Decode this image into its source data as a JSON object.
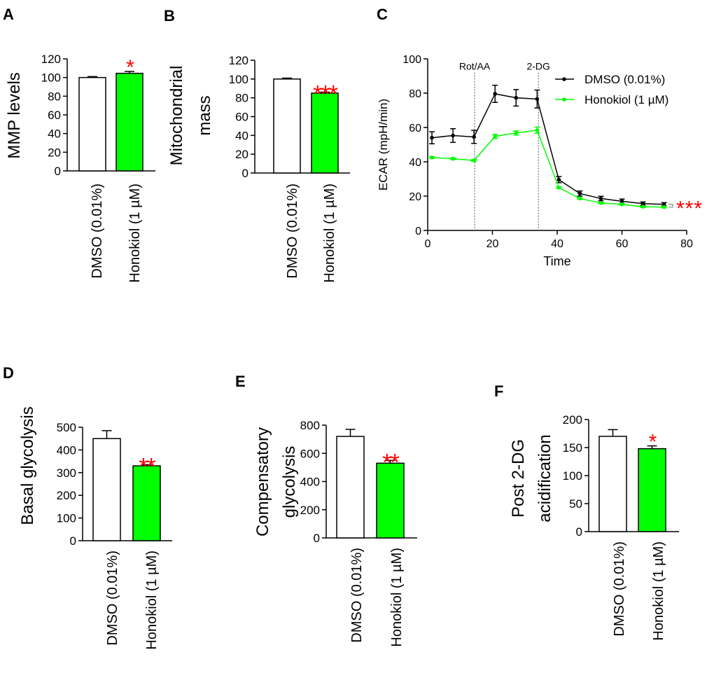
{
  "colors": {
    "dmso": "#000000",
    "honokiol": "#00ff00",
    "sig": "#ff0000",
    "bar_white": "#ffffff"
  },
  "chart_data": [
    {
      "panel": "A",
      "type": "bar",
      "ylabel": [
        "MMP levels"
      ],
      "categories": [
        "DMSO (0.01%)",
        "Honokiol (1 µM)"
      ],
      "values": [
        100,
        104.5
      ],
      "errors": [
        1,
        2
      ],
      "yticks": [
        0,
        20,
        40,
        60,
        80,
        100,
        120
      ],
      "ylim": [
        0,
        120
      ],
      "significance": [
        "",
        "*"
      ]
    },
    {
      "panel": "B",
      "type": "bar",
      "ylabel": [
        "Mitochondrial",
        "mass"
      ],
      "categories": [
        "DMSO (0.01%)",
        "Honokiol (1 µM)"
      ],
      "values": [
        100,
        85
      ],
      "errors": [
        1,
        1
      ],
      "yticks": [
        0,
        20,
        40,
        60,
        80,
        100,
        120
      ],
      "ylim": [
        0,
        120
      ],
      "significance": [
        "",
        "***"
      ]
    },
    {
      "panel": "C",
      "type": "line",
      "xlabel": "Time",
      "ylabel": "ECAR (mpH/min)",
      "xlim": [
        0,
        80
      ],
      "ylim": [
        0,
        100
      ],
      "xticks": [
        0,
        20,
        40,
        60,
        80
      ],
      "yticks": [
        0,
        20,
        40,
        60,
        80,
        100
      ],
      "annotations": [
        {
          "label": "Rot/AA",
          "x": 14.5
        },
        {
          "label": "2-DG",
          "x": 34.2
        }
      ],
      "significance": "***",
      "legend": "top-right",
      "x": [
        1.3,
        7.8,
        14.3,
        20.8,
        27.3,
        33.8,
        40.5,
        47,
        53.5,
        60,
        66.5,
        73
      ],
      "series": [
        {
          "name": "DMSO (0.01%)",
          "values": [
            54,
            55.3,
            54.5,
            79.6,
            77.3,
            76.6,
            29.6,
            21.5,
            18.6,
            17,
            15.6,
            15.2
          ],
          "errors": [
            3.5,
            4,
            3.8,
            5,
            4.8,
            5.2,
            1.8,
            1.5,
            1.3,
            1.3,
            1,
            1
          ]
        },
        {
          "name": "Honokiol (1 µM)",
          "values": [
            42.5,
            41.8,
            40.8,
            54.8,
            56.8,
            58.4,
            25,
            18.6,
            16,
            15.2,
            13.8,
            13.6
          ],
          "errors": [
            0.5,
            0.5,
            0.5,
            1.2,
            1.2,
            1.8,
            0.5,
            0.4,
            0.4,
            0.4,
            0.4,
            0.4
          ]
        }
      ]
    },
    {
      "panel": "D",
      "type": "bar",
      "ylabel": [
        "Basal glycolysis"
      ],
      "categories": [
        "DMSO (0.01%)",
        "Honokiol (1 µM)"
      ],
      "values": [
        450,
        330
      ],
      "errors": [
        35,
        5
      ],
      "yticks": [
        0,
        100,
        200,
        300,
        400,
        500
      ],
      "ylim": [
        0,
        500
      ],
      "significance": [
        "",
        "**"
      ]
    },
    {
      "panel": "E",
      "type": "bar",
      "ylabel": [
        "Compensatory",
        "glycolysis"
      ],
      "categories": [
        "DMSO (0.01%)",
        "Honokiol (1 µM)"
      ],
      "values": [
        720,
        530
      ],
      "errors": [
        50,
        20
      ],
      "yticks": [
        0,
        200,
        400,
        600,
        800
      ],
      "ylim": [
        0,
        800
      ],
      "significance": [
        "",
        "**"
      ]
    },
    {
      "panel": "F",
      "type": "bar",
      "ylabel": [
        "Post 2-DG",
        "acidification"
      ],
      "categories": [
        "DMSO (0.01%)",
        "Honokiol (1 µM)"
      ],
      "values": [
        170,
        148
      ],
      "errors": [
        12,
        5
      ],
      "yticks": [
        0,
        50,
        100,
        150,
        200
      ],
      "ylim": [
        0,
        200
      ],
      "significance": [
        "",
        "*"
      ]
    }
  ]
}
